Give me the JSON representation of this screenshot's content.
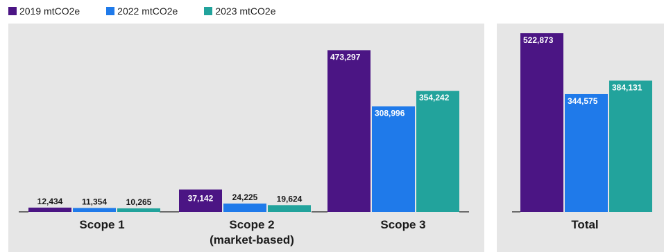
{
  "legend": [
    {
      "label": "2019 mtCO2e",
      "color": "#4b1584"
    },
    {
      "label": "2022 mtCO2e",
      "color": "#1f7aea"
    },
    {
      "label": "2023 mtCO2e",
      "color": "#22a39c"
    }
  ],
  "chart_data": [
    {
      "type": "bar",
      "categories": [
        [
          "Scope 1"
        ],
        [
          "Scope 2",
          "(market-based)"
        ],
        [
          "Scope 3"
        ]
      ],
      "series": [
        {
          "name": "2019 mtCO2e",
          "values": [
            12434,
            37142,
            473297
          ],
          "labels": [
            "12,434",
            "37,142",
            "473,297"
          ]
        },
        {
          "name": "2022 mtCO2e",
          "values": [
            11354,
            24225,
            308996
          ],
          "labels": [
            "11,354",
            "24,225",
            "308,996"
          ]
        },
        {
          "name": "2023 mtCO2e",
          "values": [
            10265,
            19624,
            354242
          ],
          "labels": [
            "10,265",
            "19,624",
            "354,242"
          ]
        }
      ],
      "ylim": [
        0,
        522873
      ]
    },
    {
      "type": "bar",
      "categories": [
        [
          "Total"
        ]
      ],
      "series": [
        {
          "name": "2019 mtCO2e",
          "values": [
            522873
          ],
          "labels": [
            "522,873"
          ]
        },
        {
          "name": "2022 mtCO2e",
          "values": [
            344575
          ],
          "labels": [
            "344,575"
          ]
        },
        {
          "name": "2023 mtCO2e",
          "values": [
            384131
          ],
          "labels": [
            "384,131"
          ]
        }
      ],
      "ylim": [
        0,
        522873
      ]
    }
  ]
}
